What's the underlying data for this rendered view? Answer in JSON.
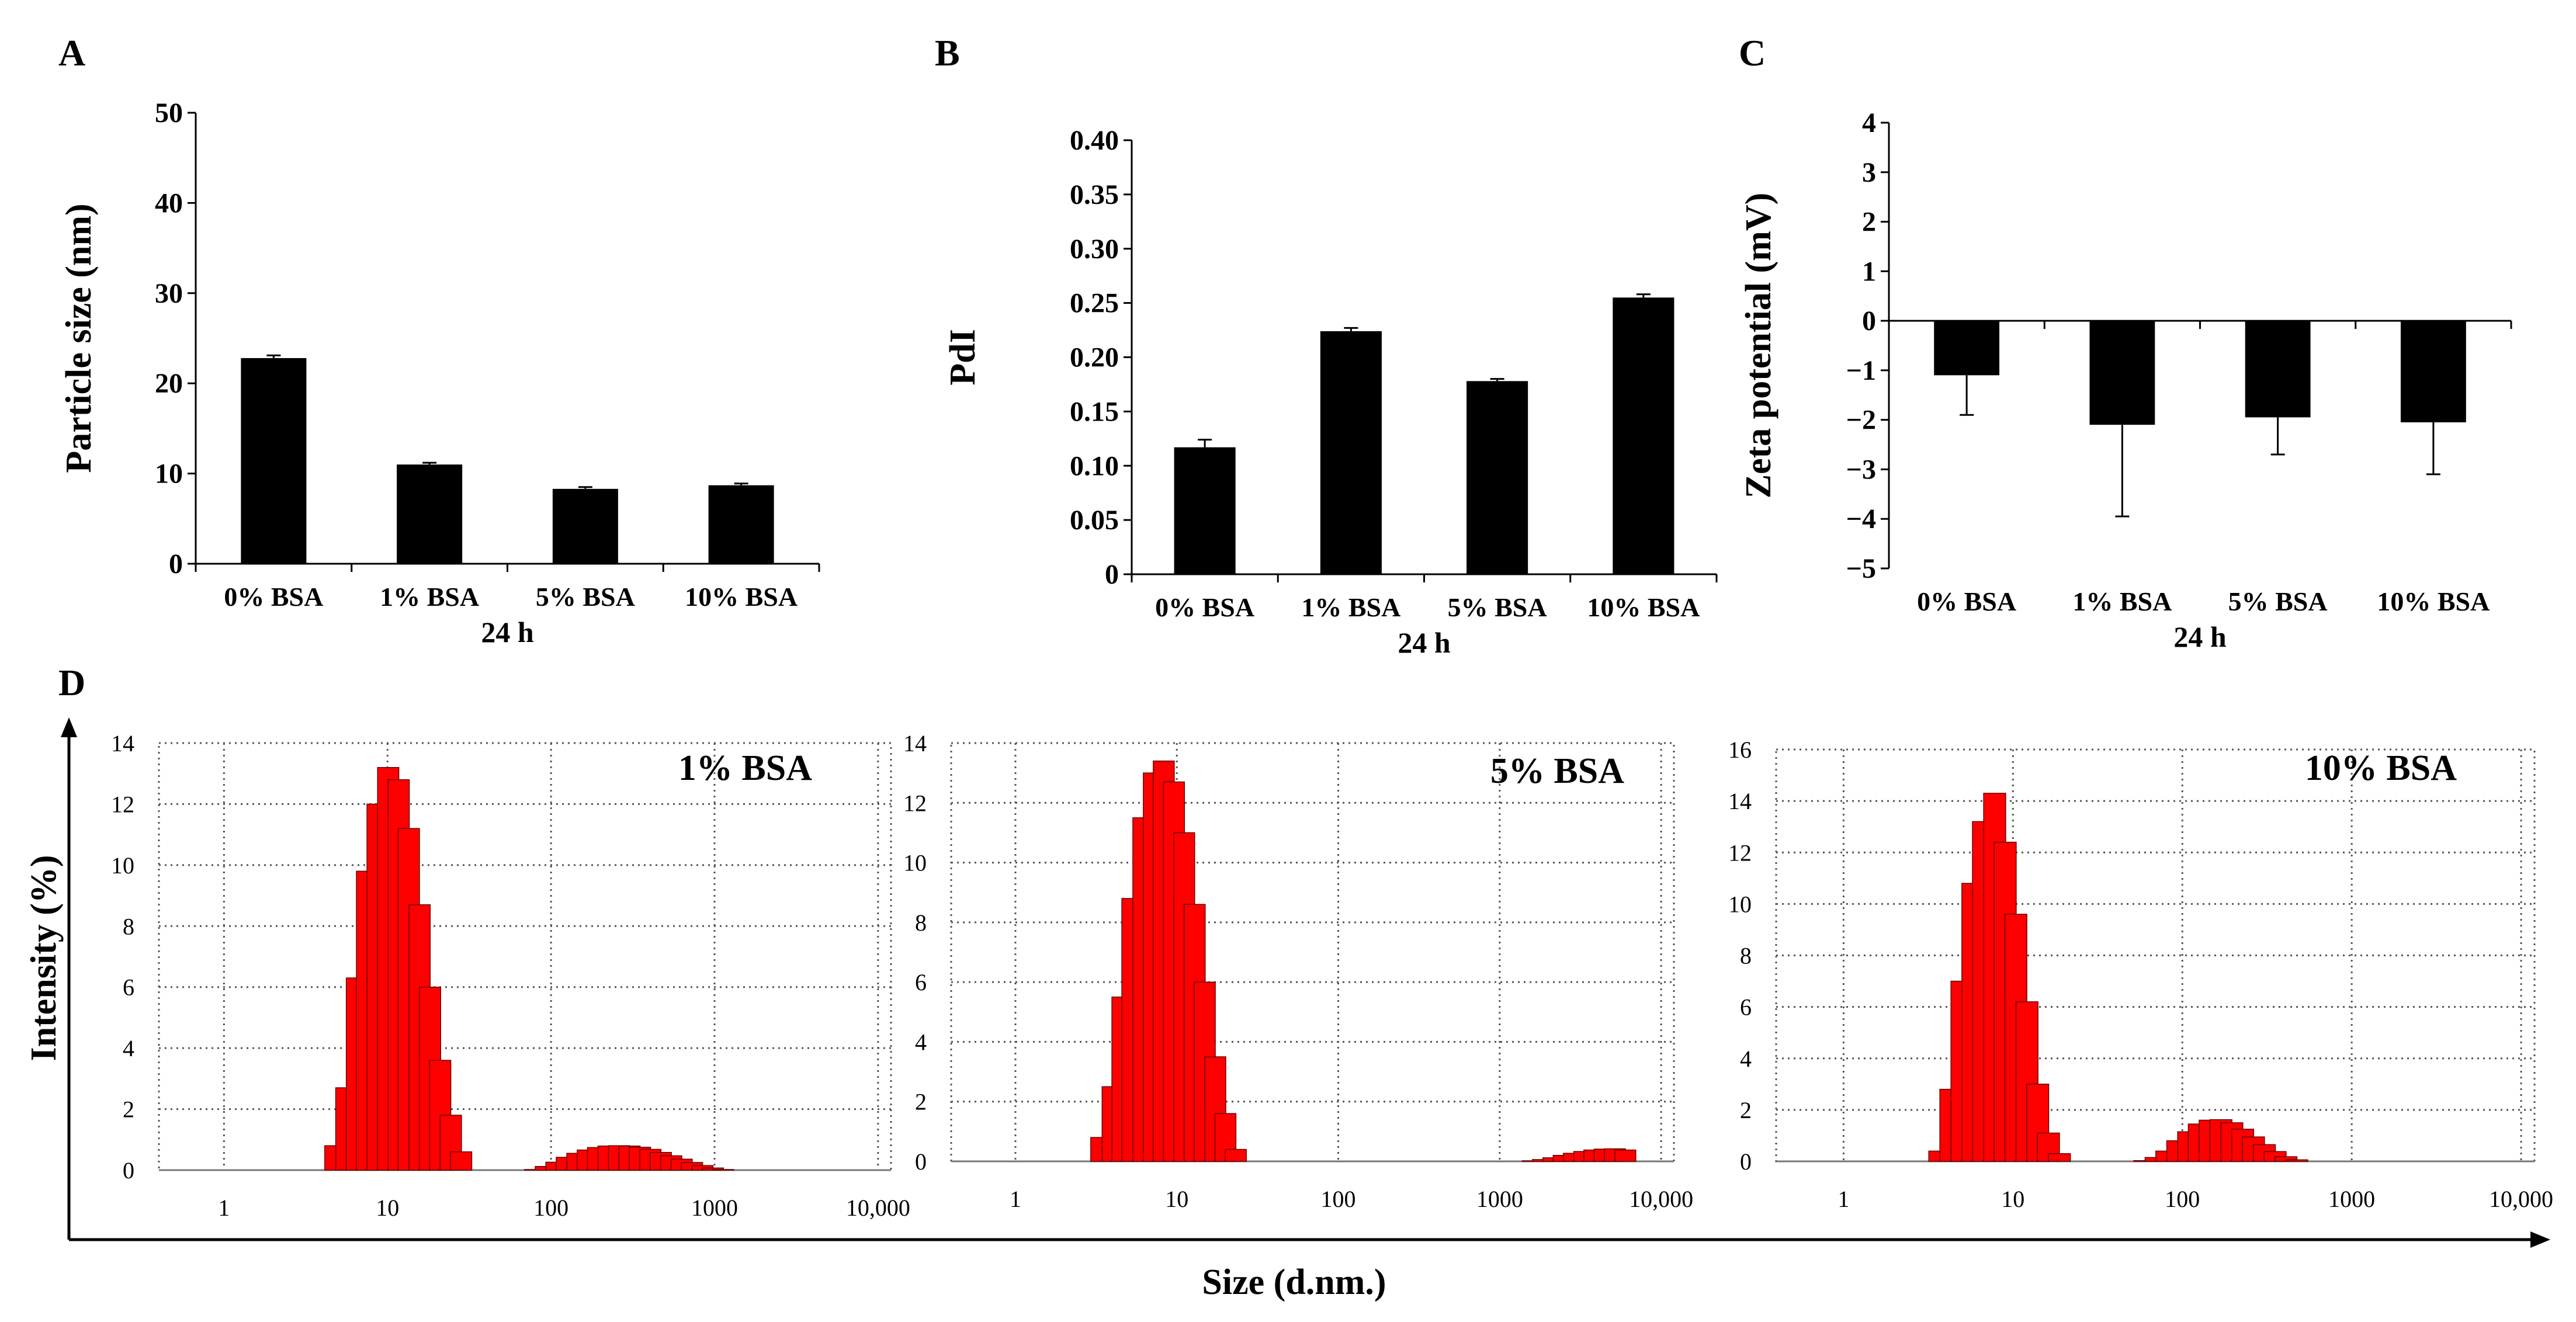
{
  "panels": {
    "A": {
      "letter": "A"
    },
    "B": {
      "letter": "B"
    },
    "C": {
      "letter": "C"
    },
    "D": {
      "letter": "D",
      "ylabel": "Intensity (%)",
      "xlabel": "Size (d.nm.)"
    }
  },
  "colors": {
    "bar": "#000000",
    "histogram": "#ff0000",
    "grid": "#555555"
  },
  "chart_data": [
    {
      "id": "A",
      "type": "bar",
      "categories": [
        "0% BSA",
        "1% BSA",
        "5% BSA",
        "10% BSA"
      ],
      "group_label": "24 h",
      "values": [
        22.8,
        11.0,
        8.3,
        8.7
      ],
      "errors": [
        0.3,
        0.2,
        0.2,
        0.2
      ],
      "ylabel": "Particle size (nm)",
      "ylim": [
        0,
        50
      ],
      "yticks": [
        "0",
        "10",
        "20",
        "30",
        "40",
        "50"
      ]
    },
    {
      "id": "B",
      "type": "bar",
      "categories": [
        "0% BSA",
        "1% BSA",
        "5% BSA",
        "10% BSA"
      ],
      "group_label": "24 h",
      "values": [
        0.117,
        0.224,
        0.178,
        0.255
      ],
      "errors": [
        0.007,
        0.003,
        0.002,
        0.003
      ],
      "ylabel": "PdI",
      "ylim": [
        0,
        0.4
      ],
      "yticks": [
        "0",
        "0.05",
        "0.10",
        "0.15",
        "0.20",
        "0.25",
        "0.30",
        "0.35",
        "0.40"
      ]
    },
    {
      "id": "C",
      "type": "bar",
      "categories": [
        "0% BSA",
        "1% BSA",
        "5% BSA",
        "10% BSA"
      ],
      "group_label": "24 h",
      "values": [
        -1.1,
        -2.1,
        -1.95,
        -2.05
      ],
      "errors": [
        0.8,
        1.85,
        0.75,
        1.05
      ],
      "ylabel": "Zeta potential (mV)",
      "ylim": [
        -5,
        4
      ],
      "yticks": [
        "−5",
        "−4",
        "−3",
        "−2",
        "−1",
        "0",
        "1",
        "2",
        "3",
        "4"
      ]
    },
    {
      "id": "D1",
      "type": "bar",
      "label": "1% BSA",
      "x_scale": "log",
      "xlim": [
        0.4,
        12000
      ],
      "xticks": [
        "1",
        "10",
        "100",
        "1000",
        "10,000"
      ],
      "ylim": [
        0,
        14
      ],
      "yticks": [
        "0",
        "2",
        "4",
        "6",
        "8",
        "10",
        "12",
        "14"
      ],
      "x": [
        4.8,
        5.6,
        6.5,
        7.5,
        8.7,
        10.1,
        11.7,
        13.5,
        15.7,
        18.2,
        21.0,
        24.4,
        28.2,
        80,
        93,
        108,
        125,
        145,
        168,
        194,
        225,
        261,
        302,
        350,
        405,
        469,
        543,
        629,
        728,
        843,
        977,
        1130
      ],
      "values": [
        0.8,
        2.7,
        6.3,
        9.8,
        12.0,
        13.2,
        12.8,
        11.2,
        8.7,
        6.0,
        3.6,
        1.8,
        0.6,
        0.02,
        0.12,
        0.26,
        0.42,
        0.55,
        0.66,
        0.74,
        0.79,
        0.8,
        0.79,
        0.75,
        0.68,
        0.58,
        0.47,
        0.36,
        0.25,
        0.15,
        0.07,
        0.02
      ]
    },
    {
      "id": "D2",
      "type": "bar",
      "label": "5% BSA",
      "x_scale": "log",
      "xlim": [
        0.4,
        12000
      ],
      "xticks": [
        "1",
        "10",
        "100",
        "1000",
        "10,000"
      ],
      "ylim": [
        0,
        14
      ],
      "yticks": [
        "0",
        "2",
        "4",
        "6",
        "8",
        "10",
        "12",
        "14"
      ],
      "x": [
        3.4,
        4.0,
        4.6,
        5.3,
        6.2,
        7.2,
        8.3,
        9.6,
        11.1,
        12.9,
        14.9,
        17.3,
        20.0,
        23.2,
        1600,
        1850,
        2150,
        2490,
        2880,
        3340,
        3860,
        4470,
        5180,
        6000
      ],
      "values": [
        0.8,
        2.5,
        5.5,
        8.8,
        11.5,
        13.0,
        13.4,
        12.7,
        11.0,
        8.6,
        6.0,
        3.5,
        1.6,
        0.4,
        0.02,
        0.06,
        0.12,
        0.2,
        0.27,
        0.33,
        0.38,
        0.41,
        0.42,
        0.38
      ]
    },
    {
      "id": "D3",
      "type": "bar",
      "label": "10% BSA",
      "x_scale": "log",
      "xlim": [
        0.4,
        12000
      ],
      "xticks": [
        "1",
        "10",
        "100",
        "1000",
        "10,000"
      ],
      "ylim": [
        0,
        16
      ],
      "yticks": [
        "0",
        "2",
        "4",
        "6",
        "8",
        "10",
        "12",
        "14",
        "16"
      ],
      "x": [
        3.7,
        4.3,
        5.0,
        5.8,
        6.7,
        7.8,
        9.0,
        10.4,
        12.1,
        14.0,
        16.2,
        18.8,
        60,
        70,
        81,
        94,
        109,
        126,
        146,
        169,
        196,
        227,
        263,
        305,
        353,
        409,
        474
      ],
      "values": [
        0.4,
        2.8,
        7.0,
        10.8,
        13.2,
        14.3,
        12.4,
        9.6,
        6.2,
        3.0,
        1.1,
        0.3,
        0.03,
        0.15,
        0.4,
        0.8,
        1.15,
        1.45,
        1.6,
        1.62,
        1.5,
        1.25,
        0.95,
        0.65,
        0.38,
        0.18,
        0.06
      ]
    }
  ]
}
